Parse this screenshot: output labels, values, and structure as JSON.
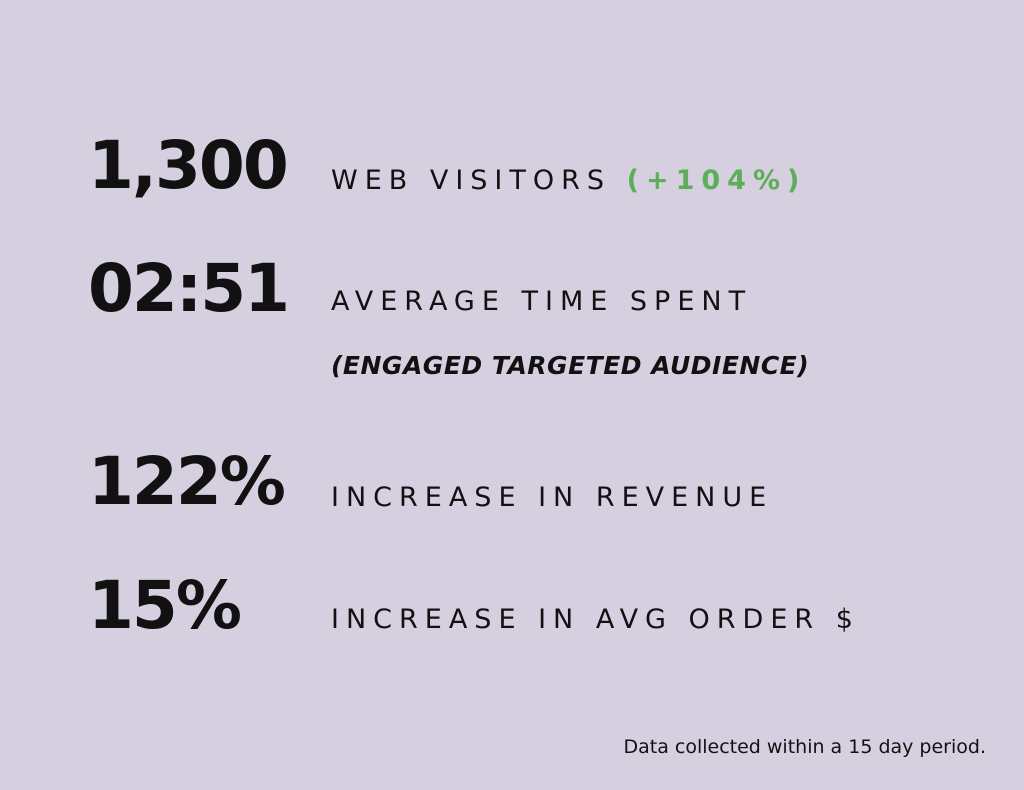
{
  "background_color": "#d5cfe0",
  "accent_color": "#5cae58",
  "stats": [
    {
      "value": "1,300",
      "label": "WEB VISITORS",
      "highlight": "(+104%)"
    },
    {
      "value": "02:51",
      "label": "AVERAGE TIME SPENT",
      "sublabel": "(ENGAGED TARGETED AUDIENCE)"
    },
    {
      "value": "122%",
      "label": "INCREASE IN REVENUE"
    },
    {
      "value": "15%",
      "label": "INCREASE IN AVG ORDER $"
    }
  ],
  "footnote": "Data collected within a 15 day period."
}
